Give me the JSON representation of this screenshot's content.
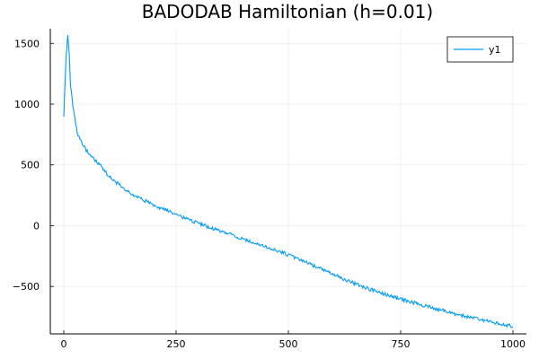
{
  "chart_data": {
    "type": "line",
    "title": "BADODAB Hamiltonian (h=0.01)",
    "xlabel": "",
    "ylabel": "",
    "xlim": [
      -30,
      1030
    ],
    "ylim": [
      -890,
      1620
    ],
    "x_ticks": [
      0,
      250,
      500,
      750,
      1000
    ],
    "x_tick_labels": [
      "0",
      "250",
      "500",
      "750",
      "1000"
    ],
    "y_ticks": [
      1500,
      1000,
      500,
      0,
      -500
    ],
    "y_tick_labels": [
      "1500",
      "1000",
      "500",
      "0",
      "−500"
    ],
    "grid": true,
    "legend": "top-right",
    "series": [
      {
        "name": "y1",
        "color": "#009af9",
        "x": [
          0,
          5,
          9,
          12,
          15,
          20,
          25,
          30,
          40,
          50,
          60,
          70,
          80,
          100,
          125,
          150,
          175,
          200,
          225,
          250,
          275,
          300,
          325,
          350,
          375,
          400,
          425,
          450,
          475,
          500,
          525,
          550,
          575,
          600,
          625,
          650,
          675,
          700,
          725,
          750,
          775,
          800,
          825,
          850,
          875,
          900,
          925,
          950,
          975,
          1000
        ],
        "y": [
          900,
          1380,
          1560,
          1420,
          1150,
          1000,
          870,
          760,
          680,
          620,
          580,
          540,
          500,
          410,
          330,
          265,
          215,
          170,
          130,
          90,
          55,
          20,
          -15,
          -45,
          -75,
          -110,
          -145,
          -175,
          -205,
          -240,
          -280,
          -320,
          -360,
          -400,
          -440,
          -480,
          -515,
          -545,
          -575,
          -605,
          -630,
          -655,
          -680,
          -705,
          -730,
          -750,
          -770,
          -790,
          -810,
          -830
        ]
      }
    ]
  }
}
